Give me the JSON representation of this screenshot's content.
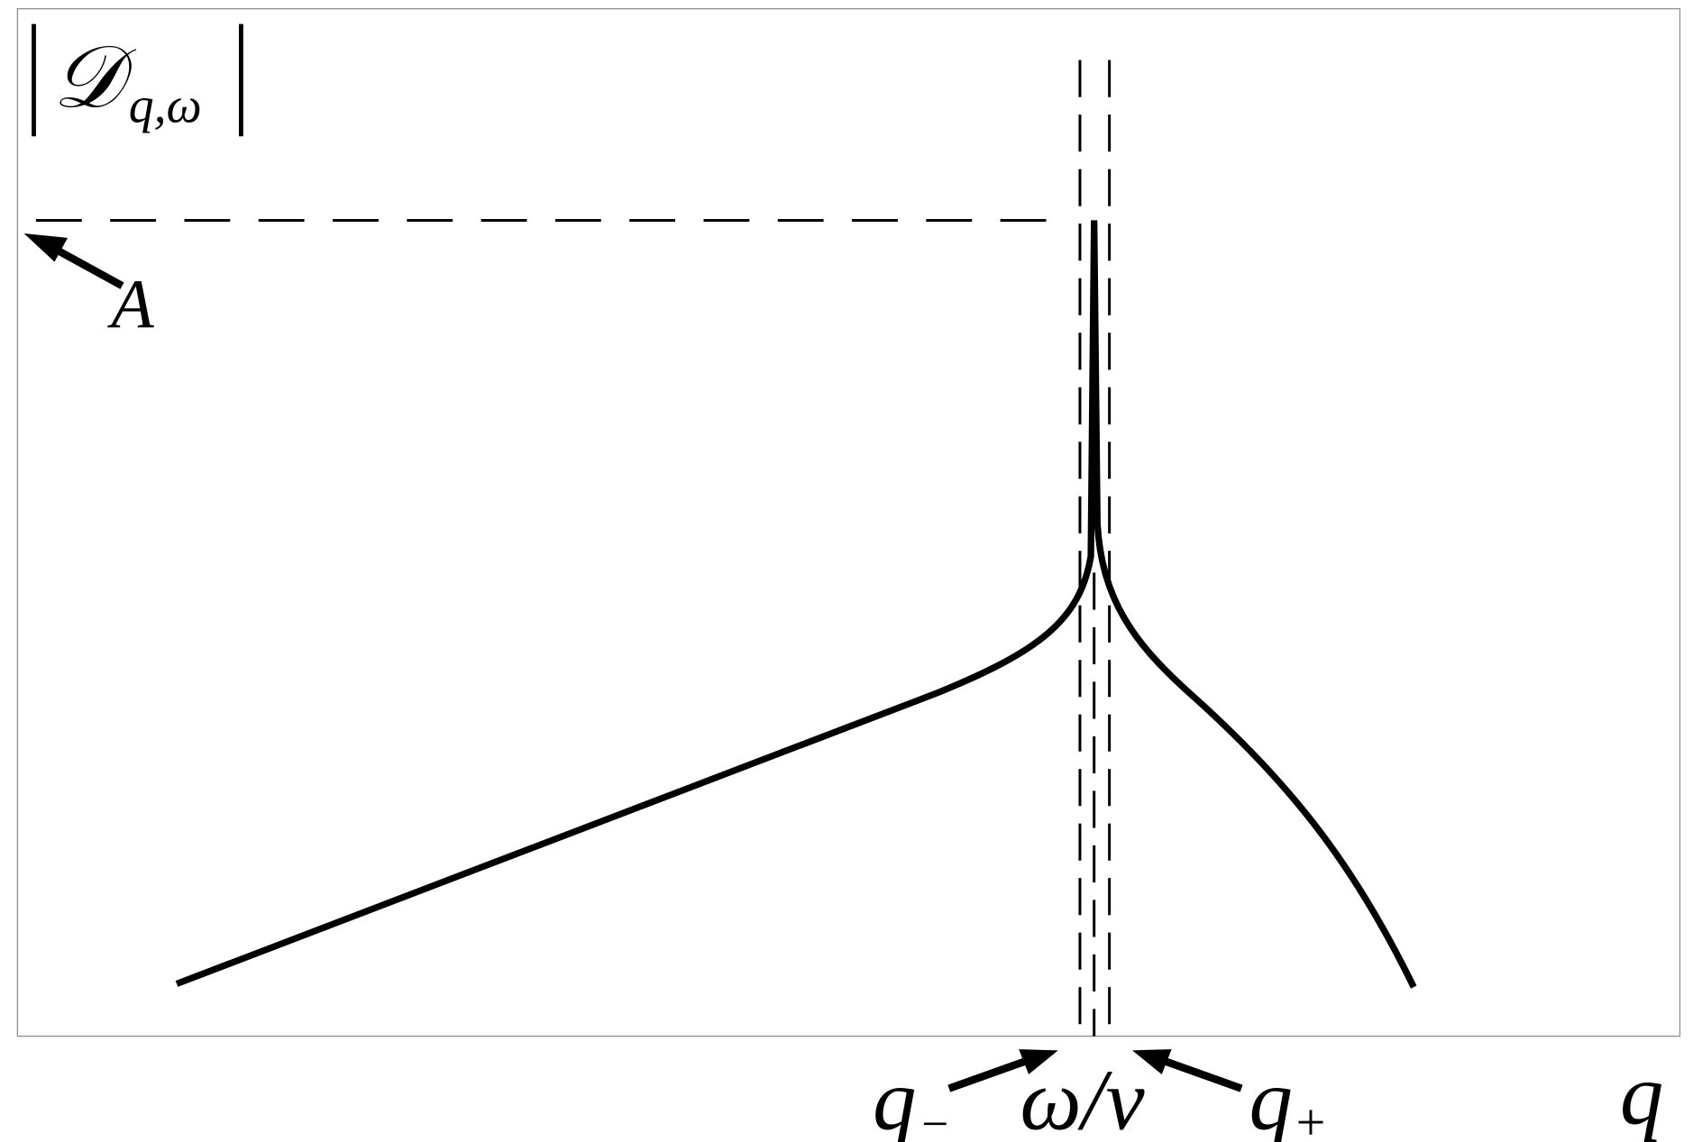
{
  "y_label": {
    "symbol": "𝒟",
    "subscript": "q,ω"
  },
  "amplitude_label": "A",
  "q_minus": {
    "base": "q",
    "subscript": "−"
  },
  "center_label": "ω/v",
  "q_plus": {
    "base": "q",
    "subscript": "+"
  },
  "x_label": "q"
}
